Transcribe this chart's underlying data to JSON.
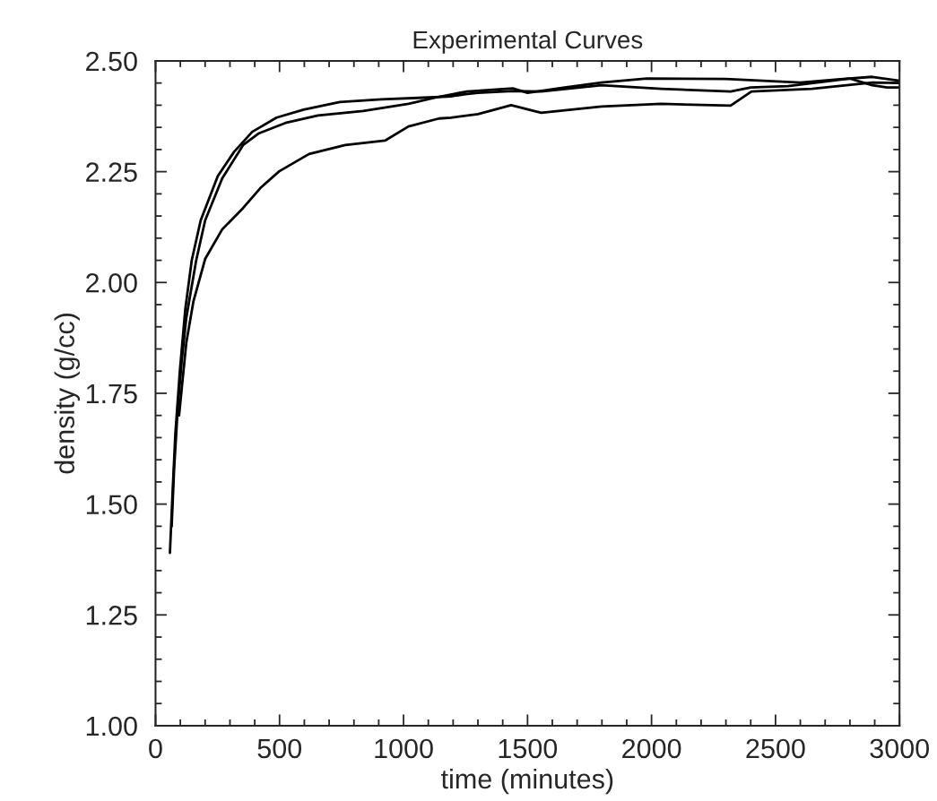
{
  "chart_data": {
    "type": "line",
    "title": "Experimental Curves",
    "xlabel": "time (minutes)",
    "ylabel": "density (g/cc)",
    "xlim": [
      0,
      3000
    ],
    "ylim": [
      1.0,
      2.5
    ],
    "xticks": [
      0,
      500,
      1000,
      1500,
      2000,
      2500,
      3000
    ],
    "yticks": [
      {
        "value": 1.0,
        "label": "1.00"
      },
      {
        "value": 1.25,
        "label": "1.25"
      },
      {
        "value": 1.5,
        "label": "1.50"
      },
      {
        "value": 1.75,
        "label": "1.75"
      },
      {
        "value": 2.0,
        "label": "2.00"
      },
      {
        "value": 2.25,
        "label": "2.25"
      },
      {
        "value": 2.5,
        "label": "2.50"
      }
    ],
    "grid": false,
    "legend": false,
    "marker": "none",
    "line_style": "solid",
    "series": [
      {
        "color": "#000000",
        "x": [
          58,
          69,
          80,
          98,
          120,
          146,
          182,
          251,
          317,
          390,
          488,
          597,
          743,
          910,
          1081,
          1191,
          1250,
          1300,
          1440,
          1555,
          1798,
          2039,
          2319,
          2400,
          2550,
          2800,
          2890,
          2950,
          3000
        ],
        "values": [
          1.39,
          1.53,
          1.66,
          1.8,
          1.94,
          2.05,
          2.14,
          2.24,
          2.295,
          2.34,
          2.372,
          2.39,
          2.407,
          2.413,
          2.417,
          2.42,
          2.425,
          2.428,
          2.432,
          2.431,
          2.445,
          2.437,
          2.431,
          2.44,
          2.443,
          2.46,
          2.445,
          2.44,
          2.44
        ]
      },
      {
        "color": "#000000",
        "x": [
          65,
          75,
          90,
          105,
          124,
          164,
          200,
          269,
          353,
          415,
          524,
          655,
          837,
          1020,
          1143,
          1256,
          1440,
          1500,
          1650,
          1798,
          1981,
          2300,
          2600,
          2750,
          2890,
          3000
        ],
        "values": [
          1.45,
          1.58,
          1.72,
          1.82,
          1.92,
          2.05,
          2.14,
          2.235,
          2.31,
          2.336,
          2.36,
          2.377,
          2.387,
          2.403,
          2.419,
          2.431,
          2.438,
          2.428,
          2.44,
          2.451,
          2.46,
          2.459,
          2.451,
          2.458,
          2.464,
          2.455
        ]
      },
      {
        "color": "#000000",
        "x": [
          95,
          106,
          124,
          153,
          200,
          269,
          353,
          426,
          499,
          619,
          765,
          925,
          1020,
          1143,
          1191,
          1300,
          1434,
          1555,
          1798,
          2039,
          2319,
          2403,
          2647,
          2891,
          3000
        ],
        "values": [
          1.7,
          1.763,
          1.864,
          1.958,
          2.053,
          2.12,
          2.168,
          2.215,
          2.251,
          2.29,
          2.31,
          2.32,
          2.352,
          2.37,
          2.372,
          2.38,
          2.4,
          2.383,
          2.397,
          2.403,
          2.399,
          2.431,
          2.437,
          2.451,
          2.45
        ]
      }
    ]
  }
}
